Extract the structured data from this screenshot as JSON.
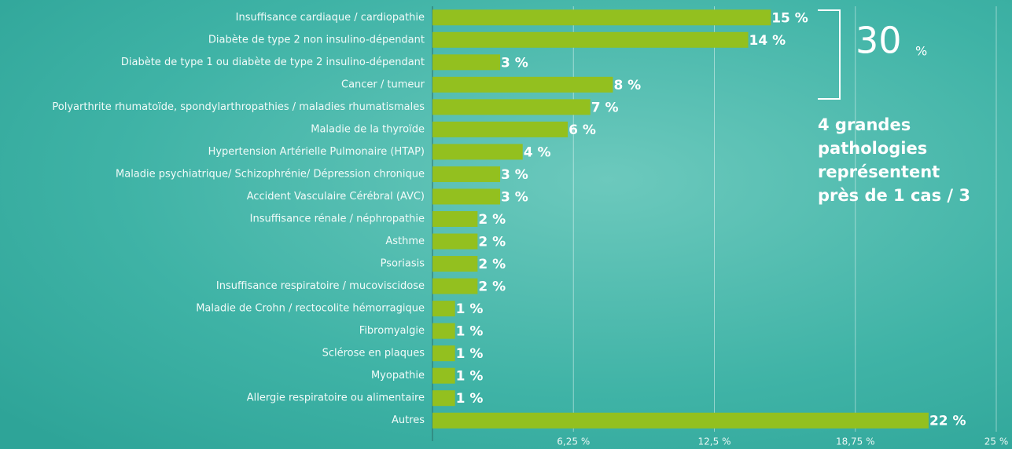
{
  "chart_data": {
    "type": "barh",
    "categories": [
      "Insuffisance cardiaque / cardiopathie",
      "Diabète de type 2 non insulino-dépendant",
      "Diabète de type 1 ou diabète de type 2 insulino-dépendant",
      "Cancer / tumeur",
      "Polyarthrite rhumatoïde, spondylarthropathies / maladies rhumatismales",
      "Maladie de la thyroïde",
      "Hypertension Artérielle Pulmonaire (HTAP)",
      "Maladie psychiatrique/ Schizophrénie/ Dépression chronique",
      "Accident Vasculaire Cérébral (AVC)",
      "Insuffisance rénale / néphropathie",
      "Asthme",
      "Psoriasis",
      "Insuffisance respiratoire / mucoviscidose",
      "Maladie de Crohn / rectocolite hémorragique",
      "Fibromyalgie",
      "Sclérose en plaques",
      "Myopathie",
      "Allergie respiratoire ou alimentaire",
      "Autres"
    ],
    "values": [
      15,
      14,
      3,
      8,
      7,
      6,
      4,
      3,
      3,
      2,
      2,
      2,
      2,
      1,
      1,
      1,
      1,
      1,
      22
    ],
    "value_labels": [
      "15 %",
      "14 %",
      "3 %",
      "8 %",
      "7 %",
      "6 %",
      "4 %",
      "3 %",
      "3 %",
      "2 %",
      "2 %",
      "2 %",
      "2 %",
      "1 %",
      "1 %",
      "1 %",
      "1 %",
      "1 %",
      "22 %"
    ],
    "color": "#93c01f",
    "xlim": [
      0,
      25
    ],
    "xticks": [
      {
        "value": 6.25,
        "label": "6,25 %"
      },
      {
        "value": 12.5,
        "label": "12,5 %"
      },
      {
        "value": 18.75,
        "label": "18,75 %"
      },
      {
        "value": 25,
        "label": "25 %"
      }
    ],
    "grid": true,
    "annotation_big": "30",
    "annotation_unit": "%",
    "annotation_text": [
      "4 grandes",
      "pathologies",
      "représentent",
      "près de 1 cas / 3"
    ]
  }
}
